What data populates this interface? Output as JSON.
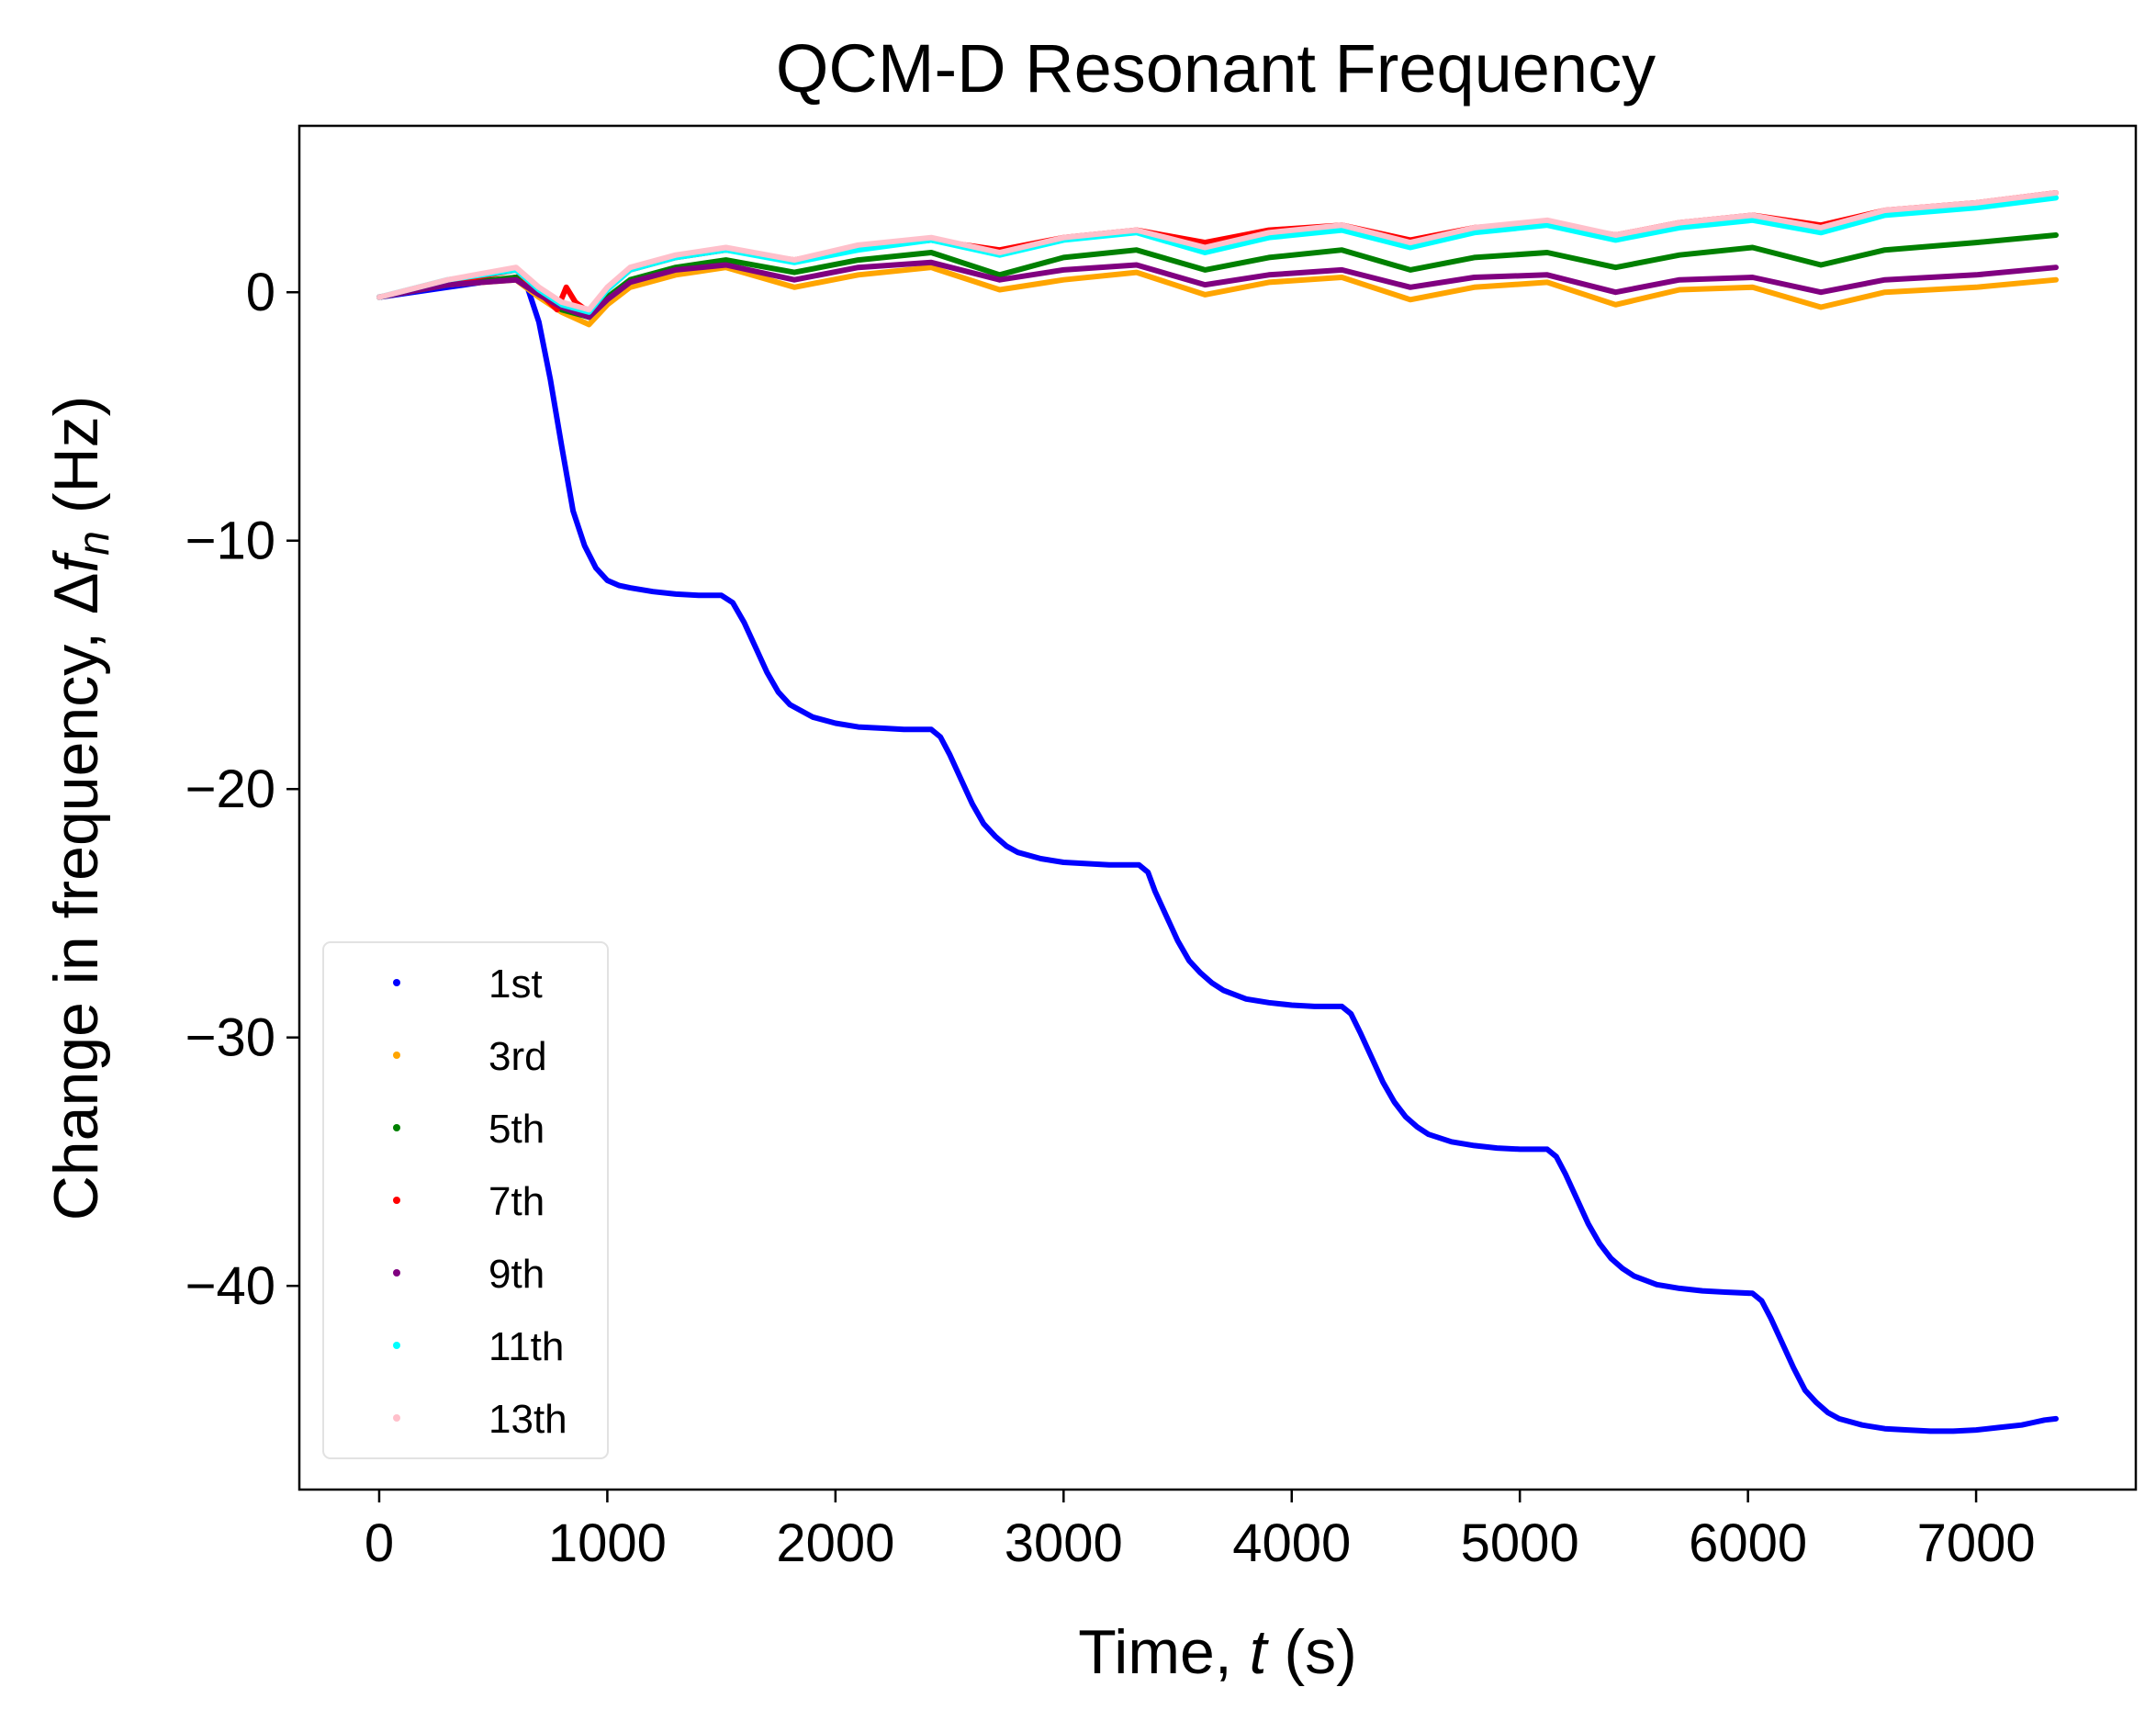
{
  "chart_data": {
    "type": "line",
    "title": "QCM-D Resonant Frequency",
    "xlabel_prefix": "Time, ",
    "xlabel_var": "t",
    "xlabel_suffix": " (s)",
    "ylabel_prefix": "Change in frequency, Δ",
    "ylabel_var": "f",
    "ylabel_sub": "n",
    "ylabel_suffix": " (Hz)",
    "xlim": [
      -350,
      7700
    ],
    "ylim": [
      -48.2,
      6.7
    ],
    "xticks": [
      0,
      1000,
      2000,
      3000,
      4000,
      5000,
      6000,
      7000
    ],
    "xtick_labels": [
      "0",
      "1000",
      "2000",
      "3000",
      "4000",
      "5000",
      "6000",
      "7000"
    ],
    "yticks": [
      0,
      -10,
      -20,
      -30,
      -40
    ],
    "ytick_labels": [
      "0",
      "−10",
      "−20",
      "−30",
      "−40"
    ],
    "legend_position": "lower-left",
    "series": [
      {
        "name": "1st",
        "color": "#0000ff",
        "x": [
          0,
          300,
          600,
          650,
          700,
          750,
          800,
          850,
          900,
          950,
          1000,
          1050,
          1100,
          1200,
          1300,
          1400,
          1500,
          1550,
          1600,
          1650,
          1700,
          1750,
          1800,
          1900,
          2000,
          2100,
          2200,
          2300,
          2420,
          2460,
          2500,
          2550,
          2600,
          2650,
          2700,
          2750,
          2800,
          2900,
          3000,
          3100,
          3200,
          3330,
          3370,
          3400,
          3450,
          3500,
          3550,
          3600,
          3650,
          3700,
          3800,
          3900,
          4000,
          4100,
          4220,
          4260,
          4300,
          4350,
          4400,
          4450,
          4500,
          4550,
          4600,
          4700,
          4800,
          4900,
          5000,
          5120,
          5160,
          5200,
          5250,
          5300,
          5350,
          5400,
          5450,
          5500,
          5600,
          5700,
          5800,
          5900,
          6020,
          6060,
          6100,
          6150,
          6200,
          6250,
          6300,
          6350,
          6400,
          6500,
          6600,
          6700,
          6800,
          6900,
          7000,
          7100,
          7200,
          7250,
          7300,
          7350
        ],
        "y": [
          -0.2,
          0.2,
          0.6,
          0.2,
          -1.2,
          -3.5,
          -6.2,
          -8.8,
          -10.2,
          -11.1,
          -11.6,
          -11.8,
          -11.9,
          -12.05,
          -12.15,
          -12.2,
          -12.2,
          -12.5,
          -13.3,
          -14.3,
          -15.3,
          -16.1,
          -16.6,
          -17.1,
          -17.35,
          -17.5,
          -17.55,
          -17.6,
          -17.6,
          -17.9,
          -18.6,
          -19.6,
          -20.6,
          -21.4,
          -21.9,
          -22.3,
          -22.55,
          -22.8,
          -22.95,
          -23.0,
          -23.05,
          -23.05,
          -23.35,
          -24.1,
          -25.1,
          -26.1,
          -26.9,
          -27.4,
          -27.8,
          -28.1,
          -28.45,
          -28.6,
          -28.7,
          -28.75,
          -28.75,
          -29.05,
          -29.8,
          -30.8,
          -31.8,
          -32.6,
          -33.2,
          -33.6,
          -33.9,
          -34.2,
          -34.35,
          -34.45,
          -34.5,
          -34.5,
          -34.8,
          -35.5,
          -36.5,
          -37.5,
          -38.3,
          -38.9,
          -39.3,
          -39.6,
          -39.95,
          -40.1,
          -40.2,
          -40.25,
          -40.3,
          -40.6,
          -41.3,
          -42.3,
          -43.3,
          -44.2,
          -44.7,
          -45.1,
          -45.35,
          -45.6,
          -45.75,
          -45.8,
          -45.85,
          -45.85,
          -45.8,
          -45.7,
          -45.6,
          -45.5,
          -45.4,
          -45.35
        ]
      },
      {
        "name": "3rd",
        "color": "#ffa500",
        "x": [
          0,
          300,
          600,
          700,
          800,
          920,
          1000,
          1100,
          1300,
          1520,
          1820,
          2100,
          2420,
          2720,
          3000,
          3320,
          3620,
          3900,
          4220,
          4520,
          4800,
          5120,
          5420,
          5700,
          6020,
          6320,
          6600,
          7000,
          7350
        ],
        "y": [
          -0.2,
          0.3,
          0.5,
          -0.2,
          -0.8,
          -1.3,
          -0.5,
          0.2,
          0.7,
          1.0,
          0.2,
          0.7,
          1.0,
          0.1,
          0.5,
          0.8,
          -0.1,
          0.4,
          0.6,
          -0.3,
          0.2,
          0.4,
          -0.5,
          0.1,
          0.2,
          -0.6,
          0.0,
          0.2,
          0.5
        ]
      },
      {
        "name": "5th",
        "color": "#008000",
        "x": [
          0,
          300,
          600,
          700,
          800,
          920,
          1000,
          1100,
          1300,
          1520,
          1820,
          2100,
          2420,
          2720,
          3000,
          3320,
          3620,
          3900,
          4220,
          4520,
          4800,
          5120,
          5420,
          5700,
          6020,
          6320,
          6600,
          7000,
          7350
        ],
        "y": [
          -0.2,
          0.3,
          0.6,
          0.0,
          -0.7,
          -1.0,
          -0.2,
          0.5,
          1.0,
          1.3,
          0.8,
          1.3,
          1.6,
          0.7,
          1.4,
          1.7,
          0.9,
          1.4,
          1.7,
          0.9,
          1.4,
          1.6,
          1.0,
          1.5,
          1.8,
          1.1,
          1.7,
          2.0,
          2.3
        ]
      },
      {
        "name": "7th",
        "color": "#ff0000",
        "x": [
          0,
          300,
          600,
          700,
          780,
          820,
          860,
          920,
          1000,
          1100,
          1300,
          1520,
          1820,
          2100,
          2420,
          2720,
          3000,
          3320,
          3620,
          3900,
          4220,
          4520,
          4800,
          5120,
          5420,
          5700,
          6020,
          6320,
          6600,
          7000,
          7350
        ],
        "y": [
          -0.2,
          0.4,
          0.9,
          0.0,
          -0.7,
          0.2,
          -0.4,
          -0.8,
          0.1,
          0.9,
          1.4,
          1.7,
          1.3,
          1.8,
          2.1,
          1.7,
          2.2,
          2.5,
          2.0,
          2.5,
          2.7,
          2.1,
          2.6,
          2.8,
          2.3,
          2.8,
          3.1,
          2.7,
          3.3,
          3.6,
          4.0
        ]
      },
      {
        "name": "9th",
        "color": "#800080",
        "x": [
          0,
          300,
          600,
          700,
          800,
          920,
          1000,
          1100,
          1300,
          1520,
          1820,
          2100,
          2420,
          2720,
          3000,
          3320,
          3620,
          3900,
          4220,
          4520,
          4800,
          5120,
          5420,
          5700,
          6020,
          6320,
          6600,
          7000,
          7350
        ],
        "y": [
          -0.2,
          0.3,
          0.5,
          -0.1,
          -0.6,
          -1.0,
          -0.3,
          0.4,
          0.9,
          1.1,
          0.5,
          1.0,
          1.2,
          0.5,
          0.9,
          1.1,
          0.3,
          0.7,
          0.9,
          0.2,
          0.6,
          0.7,
          0.0,
          0.5,
          0.6,
          0.0,
          0.5,
          0.7,
          1.0
        ]
      },
      {
        "name": "11th",
        "color": "#00ffff",
        "x": [
          0,
          300,
          600,
          700,
          800,
          920,
          1000,
          1100,
          1300,
          1520,
          1820,
          2100,
          2420,
          2720,
          3000,
          3320,
          3620,
          3900,
          4220,
          4520,
          4800,
          5120,
          5420,
          5700,
          6020,
          6320,
          6600,
          7000,
          7350
        ],
        "y": [
          -0.2,
          0.5,
          0.9,
          0.1,
          -0.5,
          -0.8,
          0.1,
          0.9,
          1.4,
          1.7,
          1.2,
          1.7,
          2.1,
          1.5,
          2.1,
          2.4,
          1.6,
          2.2,
          2.5,
          1.8,
          2.4,
          2.7,
          2.1,
          2.6,
          2.9,
          2.4,
          3.1,
          3.4,
          3.8
        ]
      },
      {
        "name": "13th",
        "color": "#ffc0cb",
        "x": [
          0,
          300,
          600,
          700,
          800,
          920,
          1000,
          1100,
          1300,
          1520,
          1820,
          2100,
          2420,
          2720,
          3000,
          3320,
          3620,
          3900,
          4220,
          4520,
          4800,
          5120,
          5420,
          5700,
          6020,
          6320,
          6600,
          7000,
          7350
        ],
        "y": [
          -0.2,
          0.5,
          1.0,
          0.2,
          -0.4,
          -0.7,
          0.2,
          1.0,
          1.5,
          1.8,
          1.3,
          1.9,
          2.2,
          1.6,
          2.2,
          2.5,
          1.8,
          2.4,
          2.7,
          2.0,
          2.6,
          2.9,
          2.3,
          2.8,
          3.1,
          2.6,
          3.3,
          3.6,
          4.0
        ]
      }
    ]
  }
}
